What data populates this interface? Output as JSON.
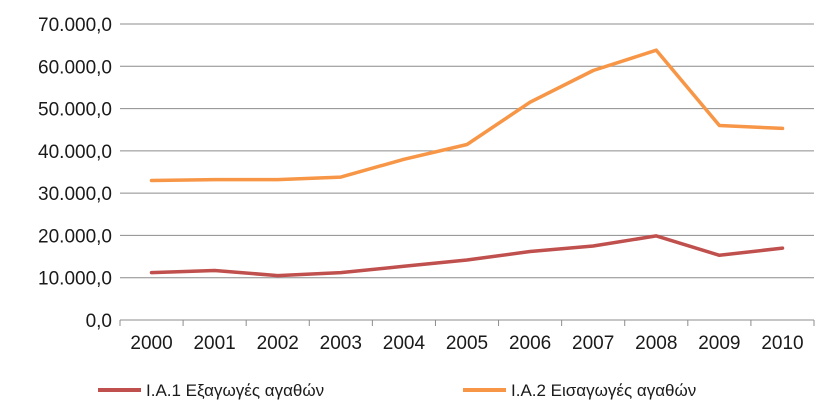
{
  "chart_data": {
    "type": "line",
    "x": [
      "2000",
      "2001",
      "2002",
      "2003",
      "2004",
      "2005",
      "2006",
      "2007",
      "2008",
      "2009",
      "2010"
    ],
    "ylim": [
      0,
      70000
    ],
    "y_ticks": [
      "0,0",
      "10.000,0",
      "20.000,0",
      "30.000,0",
      "40.000,0",
      "50.000,0",
      "60.000,0",
      "70.000,0"
    ],
    "grid": "horizontal",
    "legend_position": "bottom",
    "series": [
      {
        "name": "Ι.Α.1 Εξαγωγές αγαθών",
        "color": "#c0504d",
        "values": [
          11200,
          11700,
          10500,
          11200,
          12700,
          14200,
          16200,
          17500,
          19900,
          15300,
          17000
        ]
      },
      {
        "name": "Ι.Α.2 Εισαγωγές αγαθών",
        "color": "#f79646",
        "values": [
          33000,
          33200,
          33200,
          33800,
          38000,
          41500,
          51500,
          59000,
          63800,
          46000,
          45300
        ]
      }
    ]
  }
}
